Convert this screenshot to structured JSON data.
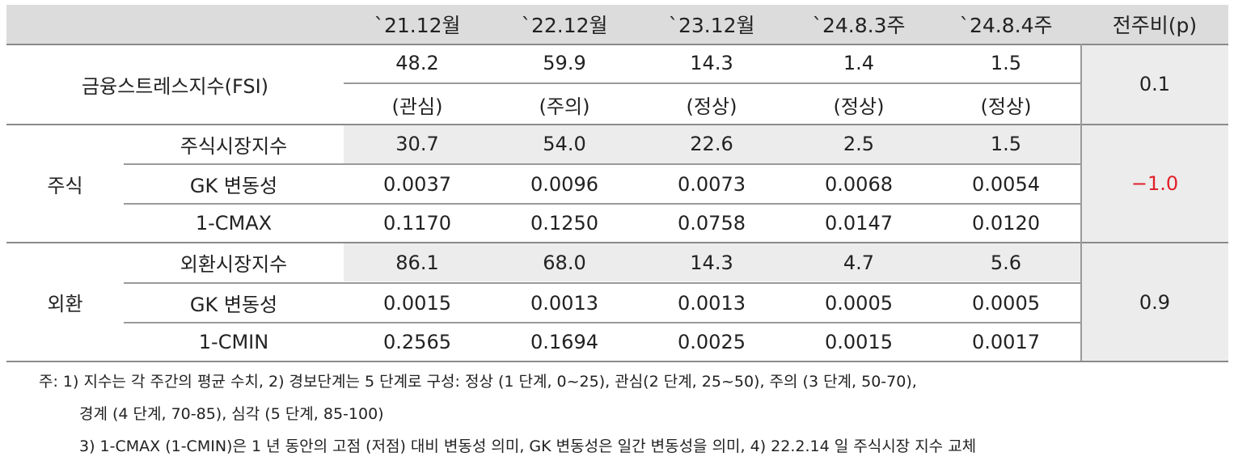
{
  "header": [
    "`21.12월",
    "`22.12월",
    "`23.12월",
    "`24.8.3주",
    "`24.8.4주",
    "전주비(p)"
  ],
  "fsi": {
    "label": "금융스트레스지수(FSI)",
    "values": [
      "48.2",
      "59.9",
      "14.3",
      "1.4",
      "1.5"
    ],
    "levels": [
      "(관심)",
      "(주의)",
      "(정상)",
      "(정상)",
      "(정상)"
    ],
    "change": "0.1"
  },
  "stock": {
    "label": "주식",
    "change": "−1.0",
    "rows": [
      {
        "label": "주식시장지수",
        "values": [
          "30.7",
          "54.0",
          "22.6",
          "2.5",
          "1.5"
        ]
      },
      {
        "label": "GK 변동성",
        "values": [
          "0.0037",
          "0.0096",
          "0.0073",
          "0.0068",
          "0.0054"
        ]
      },
      {
        "label": "1-CMAX",
        "values": [
          "0.1170",
          "0.1250",
          "0.0758",
          "0.0147",
          "0.0120"
        ]
      }
    ]
  },
  "fx": {
    "label": "외환",
    "change": "0.9",
    "rows": [
      {
        "label": "외환시장지수",
        "values": [
          "86.1",
          "68.0",
          "14.3",
          "4.7",
          "5.6"
        ]
      },
      {
        "label": "GK 변동성",
        "values": [
          "0.0015",
          "0.0013",
          "0.0013",
          "0.0005",
          "0.0005"
        ]
      },
      {
        "label": "1-CMIN",
        "values": [
          "0.2565",
          "0.1694",
          "0.0025",
          "0.0015",
          "0.0017"
        ]
      }
    ]
  },
  "notes": [
    "주: 1) 지수는 각 주간의 평균 수치, 2) 경보단계는 5 단계로 구성: 정상 (1 단계, 0~25), 관심(2 단계, 25~50), 주의 (3 단계, 50-70),",
    "경계 (4 단계, 70-85), 심각 (5 단계, 85-100)",
    "3) 1-CMAX (1-CMIN)은 1 년 동안의 고점 (저점) 대비 변동성 의미, GK 변동성은 일간 변동성을 의미, 4) 22.2.14 일 주식시장 지수 교체"
  ],
  "colors": {
    "header_bg": "#dcdcdc",
    "shade_bg": "#ececec",
    "negative": "#e0202a"
  }
}
